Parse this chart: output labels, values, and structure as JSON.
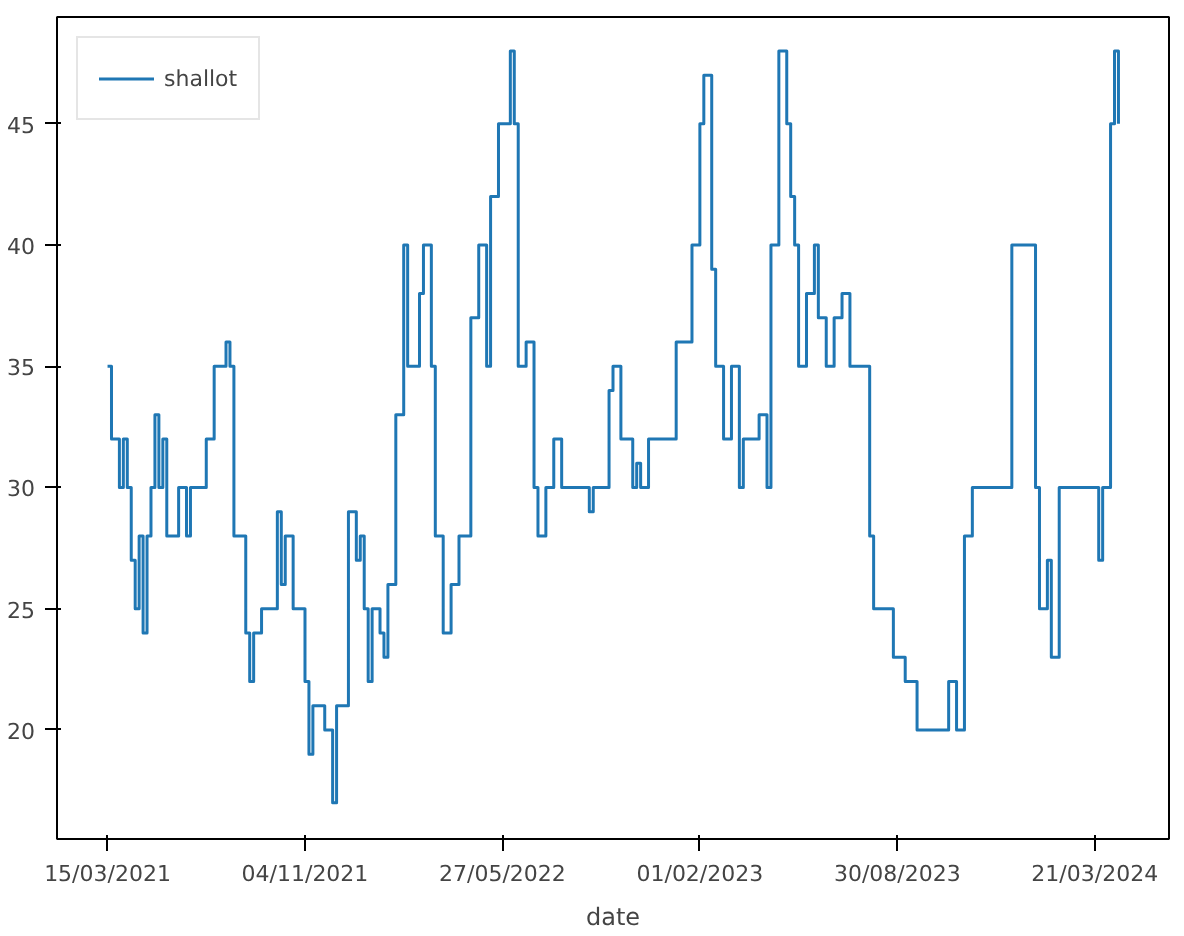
{
  "chart_data": {
    "type": "step",
    "xlabel": "date",
    "legend": "top left",
    "grid": false,
    "marker": "none",
    "line_style": "solid",
    "ylim": [
      15.5,
      49.4
    ],
    "yticks": [
      20,
      25,
      30,
      35,
      40,
      45
    ],
    "categories": [
      "15/03/2021",
      null,
      null,
      null,
      null,
      null,
      null,
      null,
      null,
      null,
      null,
      null,
      null,
      null,
      null,
      null,
      null,
      null,
      null,
      null,
      null,
      null,
      null,
      null,
      null,
      null,
      null,
      null,
      null,
      null,
      null,
      null,
      null,
      null,
      null,
      null,
      null,
      null,
      null,
      null,
      null,
      null,
      null,
      null,
      null,
      null,
      null,
      null,
      null,
      null,
      "04/11/2021",
      null,
      null,
      null,
      null,
      null,
      null,
      null,
      null,
      null,
      null,
      null,
      null,
      null,
      null,
      null,
      null,
      null,
      null,
      null,
      null,
      null,
      null,
      null,
      null,
      null,
      null,
      null,
      null,
      null,
      null,
      null,
      null,
      null,
      null,
      null,
      null,
      null,
      null,
      null,
      null,
      null,
      null,
      null,
      null,
      null,
      null,
      null,
      null,
      null,
      "27/05/2022",
      null,
      null,
      null,
      null,
      null,
      null,
      null,
      null,
      null,
      null,
      null,
      null,
      null,
      null,
      null,
      null,
      null,
      null,
      null,
      null,
      null,
      null,
      null,
      null,
      null,
      null,
      null,
      null,
      null,
      null,
      null,
      null,
      null,
      null,
      null,
      null,
      null,
      null,
      null,
      null,
      null,
      null,
      null,
      null,
      null,
      null,
      null,
      null,
      null,
      "01/02/2023",
      null,
      null,
      null,
      null,
      null,
      null,
      null,
      null,
      null,
      null,
      null,
      null,
      null,
      null,
      null,
      null,
      null,
      null,
      null,
      null,
      null,
      null,
      null,
      null,
      null,
      null,
      null,
      null,
      null,
      null,
      null,
      null,
      null,
      null,
      null,
      null,
      null,
      null,
      null,
      null,
      null,
      null,
      null,
      null,
      null,
      null,
      null,
      null,
      null,
      "30/08/2023",
      null,
      null,
      null,
      null,
      null,
      null,
      null,
      null,
      null,
      null,
      null,
      null,
      null,
      null,
      null,
      null,
      null,
      null,
      null,
      null,
      null,
      null,
      null,
      null,
      null,
      null,
      null,
      null,
      null,
      null,
      null,
      null,
      null,
      null,
      null,
      null,
      null,
      null,
      null,
      null,
      null,
      null,
      null,
      null,
      null,
      null,
      null,
      null,
      null,
      "21/03/2024",
      null,
      null,
      null,
      null,
      null,
      null
    ],
    "series": [
      {
        "name": "shallot",
        "color": "#1f77b4",
        "values": [
          35,
          32,
          32,
          30,
          32,
          30,
          27,
          25,
          28,
          24,
          28,
          30,
          33,
          30,
          32,
          28,
          28,
          28,
          30,
          30,
          28,
          30,
          30,
          30,
          30,
          32,
          32,
          35,
          35,
          35,
          36,
          35,
          28,
          28,
          28,
          24,
          22,
          24,
          24,
          25,
          25,
          25,
          25,
          29,
          26,
          28,
          28,
          25,
          25,
          25,
          22,
          19,
          21,
          21,
          21,
          20,
          20,
          17,
          21,
          21,
          21,
          29,
          29,
          27,
          28,
          25,
          22,
          25,
          25,
          24,
          23,
          26,
          26,
          33,
          33,
          40,
          35,
          35,
          35,
          38,
          40,
          40,
          35,
          28,
          28,
          24,
          24,
          26,
          26,
          28,
          28,
          28,
          37,
          37,
          40,
          40,
          35,
          42,
          42,
          45,
          45,
          45,
          48,
          45,
          35,
          35,
          36,
          36,
          30,
          28,
          28,
          30,
          30,
          32,
          32,
          30,
          30,
          30,
          30,
          30,
          30,
          30,
          29,
          30,
          30,
          30,
          30,
          34,
          35,
          35,
          32,
          32,
          32,
          30,
          31,
          30,
          30,
          32,
          32,
          32,
          32,
          32,
          32,
          32,
          36,
          36,
          36,
          36,
          40,
          40,
          45,
          47,
          47,
          39,
          35,
          35,
          32,
          32,
          35,
          35,
          30,
          32,
          32,
          32,
          32,
          33,
          33,
          30,
          40,
          40,
          48,
          48,
          45,
          42,
          40,
          35,
          35,
          38,
          38,
          40,
          37,
          37,
          35,
          35,
          37,
          37,
          38,
          38,
          35,
          35,
          35,
          35,
          35,
          28,
          25,
          25,
          25,
          25,
          25,
          23,
          23,
          23,
          22,
          22,
          22,
          20,
          20,
          20,
          20,
          20,
          20,
          20,
          20,
          22,
          22,
          20,
          20,
          28,
          28,
          30,
          30,
          30,
          30,
          30,
          30,
          30,
          30,
          30,
          30,
          40,
          40,
          40,
          40,
          40,
          40,
          30,
          25,
          25,
          27,
          23,
          23,
          30,
          30,
          30,
          30,
          30,
          30,
          30,
          30,
          30,
          30,
          27,
          30,
          30,
          45,
          48,
          45
        ]
      }
    ]
  }
}
